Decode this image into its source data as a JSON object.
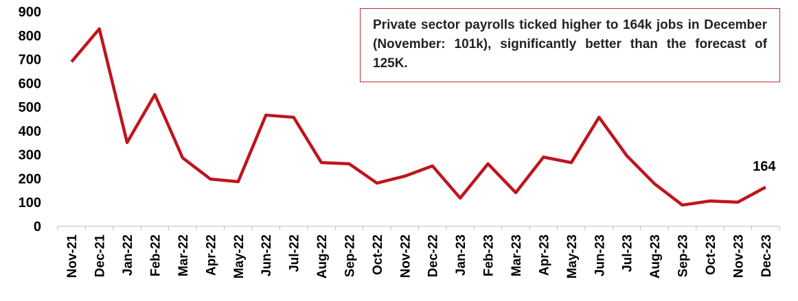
{
  "chart_data": {
    "type": "line",
    "categories": [
      "Nov-21",
      "Dec-21",
      "Jan-22",
      "Feb-22",
      "Mar-22",
      "Apr-22",
      "May-22",
      "Jun-22",
      "Jul-22",
      "Aug-22",
      "Sep-22",
      "Oct-22",
      "Nov-22",
      "Dec-22",
      "Jan-23",
      "Feb-23",
      "Mar-23",
      "Apr-23",
      "May-23",
      "Jun-23",
      "Jul-23",
      "Aug-23",
      "Sep-23",
      "Oct-23",
      "Nov-23",
      "Dec-23"
    ],
    "series": [
      {
        "name": "Private sector payrolls",
        "color": "#c0141c",
        "values": [
          690,
          828,
          351,
          552,
          287,
          198,
          187,
          466,
          457,
          267,
          262,
          181,
          210,
          253,
          118,
          262,
          141,
          290,
          267,
          457,
          296,
          178,
          89,
          106,
          101,
          164
        ]
      }
    ],
    "ylim": [
      0,
      900
    ],
    "yticks": [
      0,
      100,
      200,
      300,
      400,
      500,
      600,
      700,
      800,
      900
    ],
    "grid": false,
    "annotation": "Private sector payrolls ticked higher to 164k jobs in December (November: 101k), significantly better than the forecast of 125K."
  }
}
